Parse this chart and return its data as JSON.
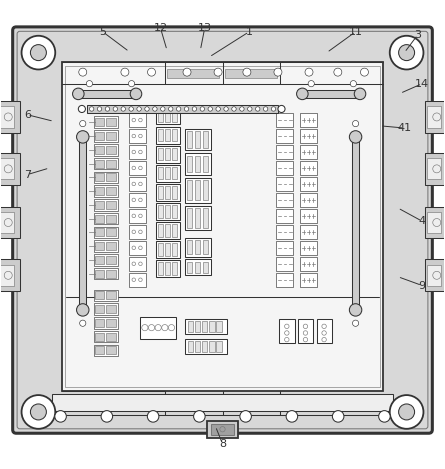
{
  "fig_width": 4.45,
  "fig_height": 4.69,
  "dpi": 100,
  "bg_color": "#ffffff",
  "lc": "#333333",
  "mg": "#777777",
  "lg": "#aaaaaa",
  "fc_outer": "#d8d8d8",
  "fc_inner": "#eeeeee",
  "fc_panel": "#f5f5f5",
  "fc_white": "#ffffff",
  "fc_gray": "#cccccc",
  "label_points": {
    "1": [
      0.56,
      0.957,
      0.47,
      0.9
    ],
    "3": [
      0.94,
      0.95,
      0.91,
      0.91
    ],
    "4": [
      0.95,
      0.53,
      0.895,
      0.56
    ],
    "5": [
      0.23,
      0.957,
      0.29,
      0.912
    ],
    "6": [
      0.06,
      0.77,
      0.12,
      0.755
    ],
    "7": [
      0.06,
      0.635,
      0.11,
      0.65
    ],
    "8": [
      0.5,
      0.028,
      0.484,
      0.068
    ],
    "9": [
      0.95,
      0.385,
      0.895,
      0.405
    ],
    "11": [
      0.8,
      0.957,
      0.735,
      0.91
    ],
    "12": [
      0.36,
      0.966,
      0.375,
      0.915
    ],
    "13": [
      0.46,
      0.966,
      0.45,
      0.915
    ],
    "14": [
      0.95,
      0.84,
      0.9,
      0.818
    ],
    "41": [
      0.91,
      0.74,
      0.855,
      0.745
    ]
  }
}
